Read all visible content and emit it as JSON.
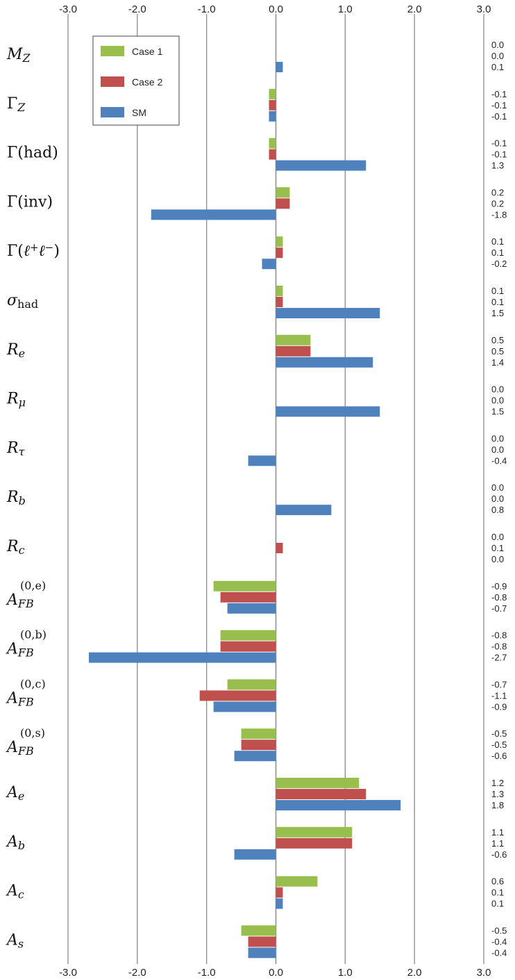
{
  "chart_data": {
    "type": "bar",
    "orientation": "horizontal",
    "xlim": [
      -3.0,
      3.0
    ],
    "x_ticks": [
      "-3.0",
      "-2.0",
      "-1.0",
      "0.0",
      "1.0",
      "2.0",
      "3.0"
    ],
    "grid": true,
    "legend_position": "top-left",
    "series": [
      {
        "name": "Case 1",
        "color": "#98bf4e"
      },
      {
        "name": "Case 2",
        "color": "#c0504d"
      },
      {
        "name": "SM",
        "color": "#4f81bd"
      }
    ],
    "categories": [
      {
        "label": "M_Z",
        "values": [
          0.0,
          0.0,
          0.1
        ]
      },
      {
        "label": "Γ_Z",
        "values": [
          -0.1,
          -0.1,
          -0.1
        ]
      },
      {
        "label": "Γ(had)",
        "values": [
          -0.1,
          -0.1,
          1.3
        ]
      },
      {
        "label": "Γ(inv)",
        "values": [
          0.2,
          0.2,
          -1.8
        ]
      },
      {
        "label": "Γ(ℓ+ℓ−)",
        "values": [
          0.1,
          0.1,
          -0.2
        ]
      },
      {
        "label": "σ_had",
        "values": [
          0.1,
          0.1,
          1.5
        ]
      },
      {
        "label": "R_e",
        "values": [
          0.5,
          0.5,
          1.4
        ]
      },
      {
        "label": "R_μ",
        "values": [
          0.0,
          0.0,
          1.5
        ]
      },
      {
        "label": "R_τ",
        "values": [
          0.0,
          0.0,
          -0.4
        ]
      },
      {
        "label": "R_b",
        "values": [
          0.0,
          0.0,
          0.8
        ]
      },
      {
        "label": "R_c",
        "values": [
          0.0,
          0.1,
          0.0
        ]
      },
      {
        "label": "A_FB^(0,e)",
        "values": [
          -0.9,
          -0.8,
          -0.7
        ]
      },
      {
        "label": "A_FB^(0,b)",
        "values": [
          -0.8,
          -0.8,
          -2.7
        ]
      },
      {
        "label": "A_FB^(0,c)",
        "values": [
          -0.7,
          -1.1,
          -0.9
        ]
      },
      {
        "label": "A_FB^(0,s)",
        "values": [
          -0.5,
          -0.5,
          -0.6
        ]
      },
      {
        "label": "A_e",
        "values": [
          1.2,
          1.3,
          1.8
        ]
      },
      {
        "label": "A_b",
        "values": [
          1.1,
          1.1,
          -0.6
        ]
      },
      {
        "label": "A_c",
        "values": [
          0.6,
          0.1,
          0.1
        ]
      },
      {
        "label": "A_s",
        "values": [
          -0.5,
          -0.4,
          -0.4
        ]
      }
    ]
  }
}
